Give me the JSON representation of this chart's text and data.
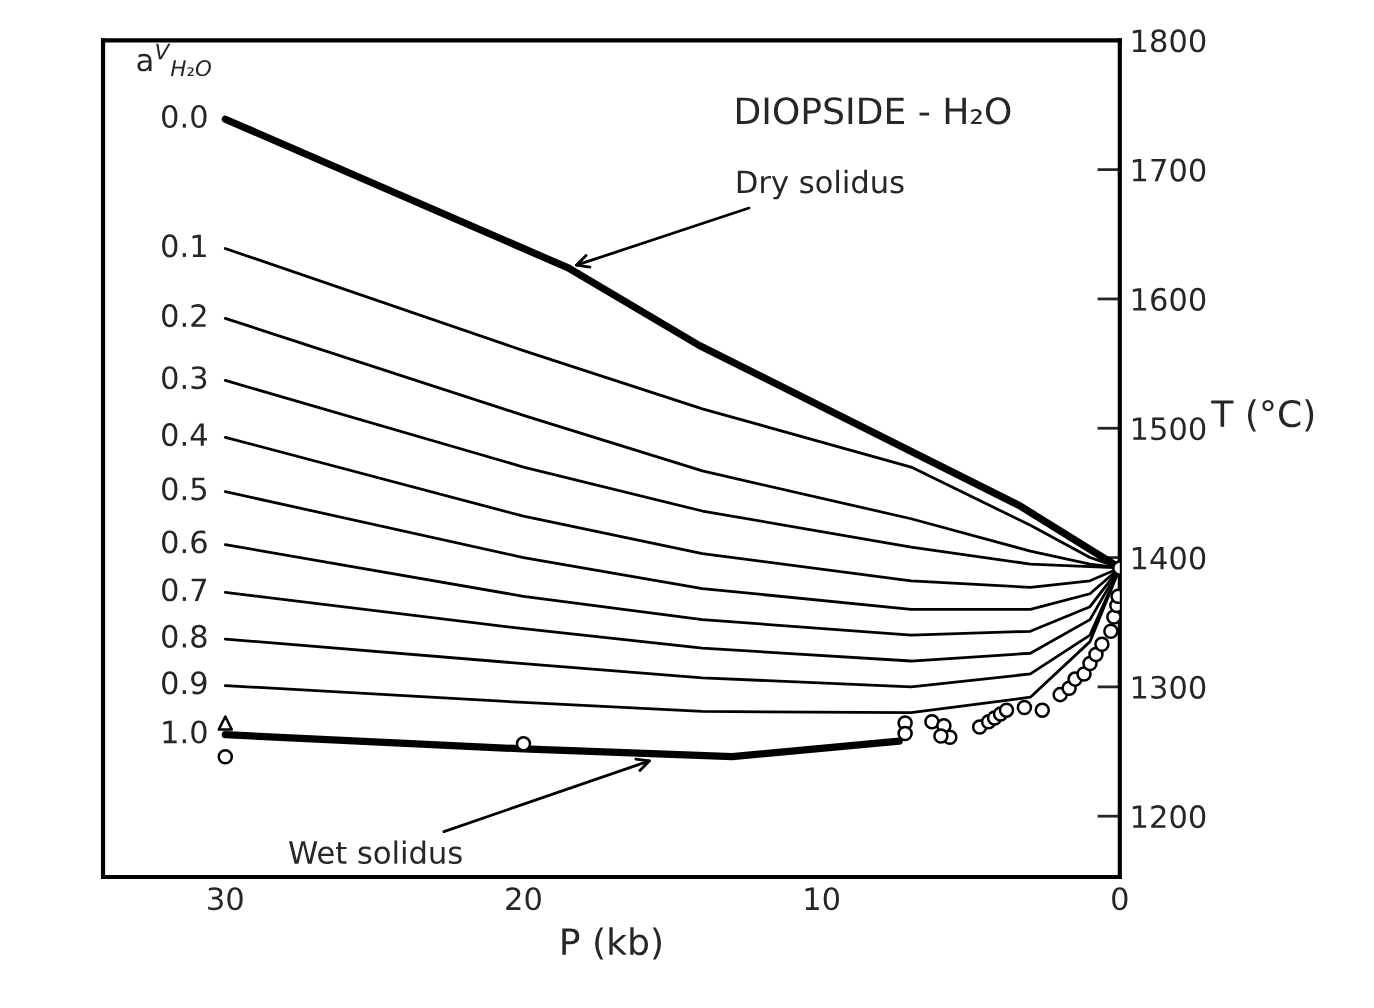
{
  "chart_data": {
    "type": "line",
    "title": "DIOPSIDE - H₂O",
    "xlabel": "P (kb)",
    "ylabel": "T (°C)",
    "xlim": [
      34.1,
      0
    ],
    "xticks": [
      30,
      20,
      10,
      0
    ],
    "ylim": [
      1153,
      1800
    ],
    "yticks": [
      1200,
      1300,
      1400,
      1500,
      1600,
      1700,
      1800
    ],
    "grid": false,
    "legend": false,
    "marker": "none",
    "line_style": "solid",
    "annotations": [
      {
        "text": "Dry solidus",
        "x": 18.5,
        "y": 1624
      },
      {
        "text": "Wet solidus",
        "x": 15.5,
        "y": 1245
      },
      "a$^{V}$$_{H₂O}$"
    ],
    "series": [
      {
        "name": "0.0",
        "color": "#000000",
        "x": [
          30,
          18.5,
          14.1,
          3.35,
          0
        ],
        "values": [
          1739,
          1624,
          1564,
          1440,
          1392
        ]
      },
      {
        "name": "0.1",
        "color": "#000000",
        "x": [
          30,
          20,
          14,
          7,
          3,
          1,
          0
        ],
        "values": [
          1639,
          1560,
          1515,
          1470,
          1425,
          1400,
          1392
        ]
      },
      {
        "name": "0.2",
        "color": "#000000",
        "x": [
          30,
          20,
          14,
          7,
          3,
          1,
          0
        ],
        "values": [
          1585,
          1510,
          1467,
          1430,
          1405,
          1395,
          1392
        ]
      },
      {
        "name": "0.3",
        "color": "#000000",
        "x": [
          30,
          20,
          14,
          7,
          3,
          1,
          0
        ],
        "values": [
          1537,
          1470,
          1436,
          1408,
          1395,
          1393,
          1392
        ]
      },
      {
        "name": "0.4",
        "color": "#000000",
        "x": [
          30,
          20,
          14,
          7,
          3,
          1,
          0
        ],
        "values": [
          1493,
          1432,
          1403,
          1382,
          1377,
          1382,
          1392
        ]
      },
      {
        "name": "0.5",
        "color": "#000000",
        "x": [
          30,
          20,
          14,
          7,
          3,
          1,
          0
        ],
        "values": [
          1451,
          1400,
          1376,
          1360,
          1360,
          1372,
          1392
        ]
      },
      {
        "name": "0.6",
        "color": "#000000",
        "x": [
          30,
          20,
          14,
          7,
          3,
          1,
          0
        ],
        "values": [
          1410,
          1370,
          1352,
          1340,
          1343,
          1362,
          1392
        ]
      },
      {
        "name": "0.7",
        "color": "#000000",
        "x": [
          30,
          20,
          14,
          7,
          3,
          1,
          0
        ],
        "values": [
          1373,
          1345,
          1330,
          1320,
          1326,
          1352,
          1392
        ]
      },
      {
        "name": "0.8",
        "color": "#000000",
        "x": [
          30,
          20,
          14,
          7,
          3,
          1,
          0
        ],
        "values": [
          1337,
          1318,
          1307,
          1300,
          1310,
          1340,
          1392
        ]
      },
      {
        "name": "0.9",
        "color": "#000000",
        "x": [
          30,
          20,
          14,
          7,
          3,
          1,
          0
        ],
        "values": [
          1301,
          1288,
          1281,
          1280,
          1292,
          1335,
          1392
        ]
      },
      {
        "name": "1.0",
        "color": "#000000",
        "x": [
          30,
          20,
          13,
          7.4
        ],
        "values": [
          1263,
          1252,
          1246,
          1258
        ]
      },
      {
        "type": "scatter",
        "marker": "circle",
        "color": "#000000",
        "x": [
          30,
          20,
          7.2,
          7.2,
          6.3,
          5.9,
          5.7,
          6.0,
          4.7,
          4.4,
          4.2,
          4.0,
          3.8,
          3.2,
          2.6,
          2.0,
          1.7,
          1.5,
          1.2,
          1.0,
          0.8,
          0.6,
          0.3,
          0.2,
          0.1,
          0.06,
          0
        ],
        "values": [
          1246,
          1256,
          1272,
          1264,
          1273,
          1270,
          1261,
          1262,
          1269,
          1273,
          1276,
          1279,
          1282,
          1284,
          1282,
          1294,
          1299,
          1306,
          1310,
          1318,
          1325,
          1333,
          1343,
          1354,
          1363,
          1370,
          1392
        ]
      },
      {
        "type": "scatter",
        "marker": "triangle",
        "color": "#000000",
        "x": [
          30
        ],
        "values": [
          1272
        ]
      }
    ]
  }
}
